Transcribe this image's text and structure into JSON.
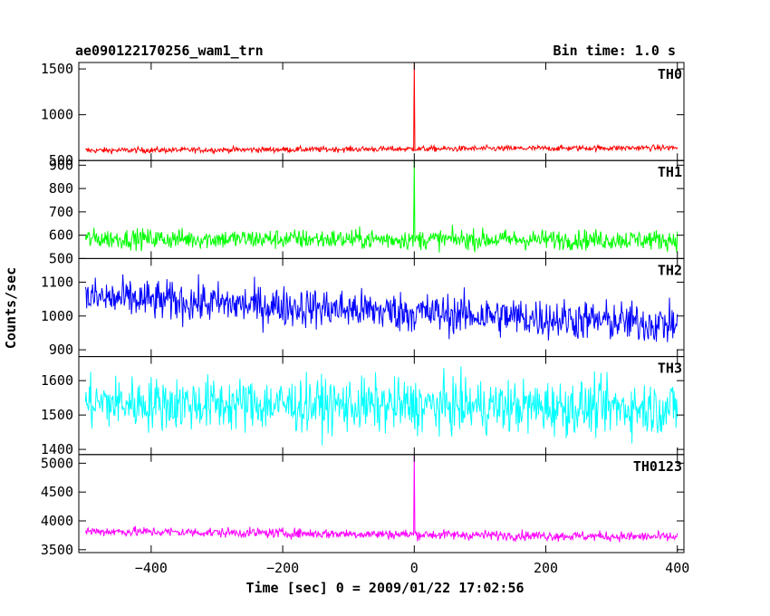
{
  "chart_data": {
    "type": "line",
    "title": "ae090122170256_wam1_trn",
    "subtitle": "Bin time: 1.0 s",
    "xlabel": "Time [sec] 0 = 2009/01/22 17:02:56",
    "ylabel": "Counts/sec",
    "xlim": [
      -510,
      410
    ],
    "x_ticks": [
      -400,
      -200,
      0,
      200,
      400
    ],
    "x_data_range": [
      -500,
      400
    ],
    "x_step": 1,
    "panels": [
      {
        "name": "TH0",
        "color": "#ff0000",
        "ylim": [
          500,
          1570
        ],
        "y_ticks": [
          500,
          1000,
          1500
        ],
        "baseline_start": 610,
        "baseline_end": 640,
        "noise": 22,
        "spike_x": 0,
        "spike_peak": 1570
      },
      {
        "name": "TH1",
        "color": "#00ff00",
        "ylim": [
          500,
          920
        ],
        "y_ticks": [
          500,
          600,
          700,
          800,
          900
        ],
        "baseline_start": 585,
        "baseline_end": 580,
        "noise": 30,
        "spike_x": 0,
        "spike_peak": 920
      },
      {
        "name": "TH2",
        "color": "#0000ff",
        "ylim": [
          880,
          1170
        ],
        "y_ticks": [
          900,
          1000,
          1100
        ],
        "baseline_start": 1055,
        "baseline_end": 975,
        "noise": 42,
        "spike_x": null,
        "spike_peak": null
      },
      {
        "name": "TH3",
        "color": "#00ffff",
        "ylim": [
          1385,
          1670
        ],
        "y_ticks": [
          1400,
          1500,
          1600
        ],
        "baseline_start": 1535,
        "baseline_end": 1520,
        "noise": 55,
        "spike_x": null,
        "spike_peak": null
      },
      {
        "name": "TH0123",
        "color": "#ff00ff",
        "ylim": [
          3450,
          5150
        ],
        "y_ticks": [
          3500,
          4000,
          4500,
          5000
        ],
        "baseline_start": 3820,
        "baseline_end": 3720,
        "noise": 60,
        "spike_x": 0,
        "spike_peak": 5150
      }
    ]
  }
}
